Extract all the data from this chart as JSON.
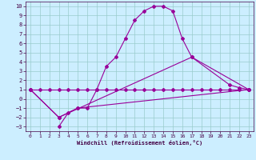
{
  "bg_color": "#cceeff",
  "line_color": "#990099",
  "xlim": [
    -0.5,
    23.5
  ],
  "ylim": [
    -3.5,
    10.5
  ],
  "xticks": [
    0,
    1,
    2,
    3,
    4,
    5,
    6,
    7,
    8,
    9,
    10,
    11,
    12,
    13,
    14,
    15,
    16,
    17,
    18,
    19,
    20,
    21,
    22,
    23
  ],
  "yticks": [
    -3,
    -2,
    -1,
    0,
    1,
    2,
    3,
    4,
    5,
    6,
    7,
    8,
    9,
    10
  ],
  "xlabel": "Windchill (Refroidissement éolien,°C)",
  "grid_color": "#99cccc",
  "marker": "D",
  "markersize": 2,
  "linewidth": 0.8,
  "line1_x": [
    0,
    1,
    2,
    3,
    4,
    5,
    6,
    7,
    8,
    9,
    10,
    11,
    12,
    13,
    14,
    15,
    16,
    17,
    18,
    19,
    20,
    21,
    22,
    23
  ],
  "line1_y": [
    1,
    1,
    1,
    1,
    1,
    1,
    1,
    1,
    1,
    1,
    1,
    1,
    1,
    1,
    1,
    1,
    1,
    1,
    1,
    1,
    1,
    1,
    1,
    1
  ],
  "line2_x": [
    3,
    4,
    5,
    6,
    7,
    8,
    9,
    10,
    11,
    12,
    13,
    14,
    15,
    16,
    17,
    21,
    22,
    23
  ],
  "line2_y": [
    -3,
    -1.5,
    -1,
    -1,
    1,
    3.5,
    4.5,
    6.5,
    8.5,
    9.5,
    10,
    10,
    9.5,
    6.5,
    4.5,
    1.5,
    1.2,
    1.0
  ],
  "line3_x": [
    0,
    3,
    17,
    23
  ],
  "line3_y": [
    1,
    -2,
    4.5,
    1.0
  ],
  "line4_x": [
    0,
    3,
    5,
    23
  ],
  "line4_y": [
    1,
    -2,
    -1,
    1.0
  ]
}
